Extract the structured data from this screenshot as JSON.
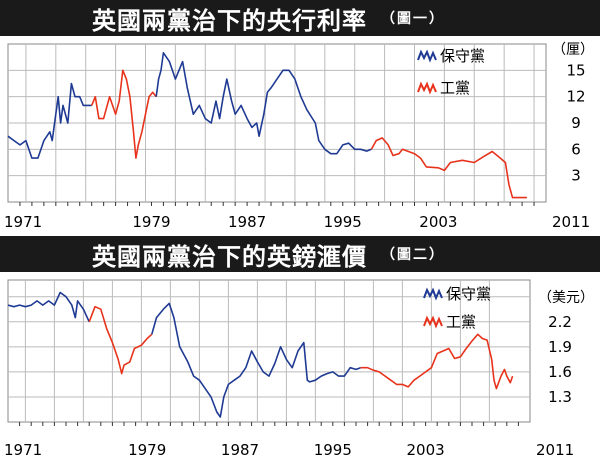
{
  "colors": {
    "conservative": "#1f3a93",
    "labour": "#e8331c",
    "grid": "#bbbbbb",
    "title_bg": "#1a1a1a"
  },
  "chart_data": [
    {
      "type": "line",
      "title": "英國兩黨治下的央行利率",
      "tag": "（圖一）",
      "ylabel": "（厘）",
      "xlim": [
        1967,
        2012
      ],
      "ylim": [
        0,
        18
      ],
      "x_ticks": [
        "1971",
        "1979",
        "1987",
        "1995",
        "2003",
        "2011"
      ],
      "y_ticks": [
        "15",
        "12",
        "9",
        "6",
        "3"
      ],
      "legend_placement": "top-right",
      "series": [
        {
          "name": "保守黨",
          "color_key": "conservative",
          "points": [
            [
              1967,
              7.5
            ],
            [
              1967.5,
              7
            ],
            [
              1968,
              6.5
            ],
            [
              1968.5,
              7
            ],
            [
              1969,
              5
            ],
            [
              1969.5,
              5
            ],
            [
              1970,
              7
            ],
            [
              1970.5,
              8
            ],
            [
              1970.7,
              7
            ],
            [
              1971,
              10
            ],
            [
              1971.2,
              12
            ],
            [
              1971.4,
              9
            ],
            [
              1971.6,
              11
            ],
            [
              1972,
              9
            ],
            [
              1972.3,
              13.5
            ],
            [
              1972.6,
              12
            ],
            [
              1973,
              12
            ],
            [
              1973.3,
              11
            ],
            [
              1974,
              11
            ]
          ]
        },
        {
          "name": "工黨",
          "color_key": "labour",
          "points": [
            [
              1974,
              11
            ],
            [
              1974.3,
              12
            ],
            [
              1974.6,
              9.5
            ],
            [
              1975,
              9.5
            ],
            [
              1975.5,
              12
            ],
            [
              1976,
              10
            ],
            [
              1976.3,
              11.5
            ],
            [
              1976.6,
              15
            ],
            [
              1976.9,
              14
            ],
            [
              1977.2,
              12
            ],
            [
              1977.5,
              8
            ],
            [
              1977.7,
              5
            ],
            [
              1977.9,
              6.5
            ],
            [
              1978.2,
              8
            ],
            [
              1978.5,
              10
            ],
            [
              1978.8,
              12
            ],
            [
              1979.1,
              12.5
            ],
            [
              1979.4,
              12
            ]
          ]
        },
        {
          "name": "保守黨",
          "color_key": "conservative",
          "points": [
            [
              1979.4,
              12
            ],
            [
              1979.6,
              14
            ],
            [
              1979.8,
              15
            ],
            [
              1980,
              17
            ],
            [
              1980.5,
              16
            ],
            [
              1981,
              14
            ],
            [
              1981.3,
              15
            ],
            [
              1981.6,
              16
            ],
            [
              1982,
              13
            ],
            [
              1982.5,
              10
            ],
            [
              1983,
              11
            ],
            [
              1983.5,
              9.5
            ],
            [
              1984,
              9
            ],
            [
              1984.4,
              11.5
            ],
            [
              1984.7,
              9.5
            ],
            [
              1985,
              12
            ],
            [
              1985.3,
              14
            ],
            [
              1985.7,
              11.5
            ],
            [
              1986,
              10
            ],
            [
              1986.5,
              11
            ],
            [
              1987,
              9.5
            ],
            [
              1987.4,
              8.5
            ],
            [
              1987.8,
              9
            ],
            [
              1988,
              7.5
            ],
            [
              1988.4,
              10
            ],
            [
              1988.7,
              12.5
            ],
            [
              1989,
              13
            ],
            [
              1989.5,
              14
            ],
            [
              1990,
              15
            ],
            [
              1990.5,
              15
            ],
            [
              1991,
              14
            ],
            [
              1991.5,
              12
            ],
            [
              1992,
              10.5
            ],
            [
              1992.7,
              9
            ],
            [
              1993,
              7
            ],
            [
              1993.5,
              6
            ],
            [
              1994,
              5.5
            ],
            [
              1994.5,
              5.5
            ],
            [
              1995,
              6.5
            ],
            [
              1995.5,
              6.7
            ],
            [
              1996,
              6
            ],
            [
              1996.5,
              6
            ],
            [
              1997,
              5.8
            ],
            [
              1997.4,
              6
            ]
          ]
        },
        {
          "name": "工黨",
          "color_key": "labour",
          "points": [
            [
              1997.4,
              6
            ],
            [
              1997.8,
              7
            ],
            [
              1998.3,
              7.3
            ],
            [
              1998.8,
              6.5
            ],
            [
              1999.2,
              5.3
            ],
            [
              1999.7,
              5.5
            ],
            [
              2000,
              6
            ],
            [
              2001,
              5.5
            ],
            [
              2001.5,
              5
            ],
            [
              2002,
              4
            ],
            [
              2003,
              3.9
            ],
            [
              2003.5,
              3.6
            ],
            [
              2004,
              4.5
            ],
            [
              2005,
              4.75
            ],
            [
              2006,
              4.5
            ],
            [
              2006.8,
              5.2
            ],
            [
              2007.5,
              5.75
            ],
            [
              2008,
              5.2
            ],
            [
              2008.6,
              4.5
            ],
            [
              2008.9,
              2
            ],
            [
              2009.2,
              0.5
            ],
            [
              2010,
              0.5
            ],
            [
              2010.4,
              0.5
            ]
          ]
        }
      ]
    },
    {
      "type": "line",
      "title": "英國兩黨治下的英鎊滙價",
      "tag": "（圖二）",
      "ylabel": "（美元）",
      "xlim": [
        1967,
        2012
      ],
      "ylim": [
        1.0,
        2.7
      ],
      "x_ticks": [
        "1971",
        "1979",
        "1987",
        "1995",
        "2003",
        "2011"
      ],
      "y_ticks": [
        "2.2",
        "1.9",
        "1.6",
        "1.3"
      ],
      "legend_placement": "top-right",
      "series": [
        {
          "name": "保守黨",
          "color_key": "conservative",
          "points": [
            [
              1967,
              2.4
            ],
            [
              1967.5,
              2.38
            ],
            [
              1968,
              2.4
            ],
            [
              1968.5,
              2.38
            ],
            [
              1969,
              2.4
            ],
            [
              1969.5,
              2.45
            ],
            [
              1970,
              2.4
            ],
            [
              1970.5,
              2.45
            ],
            [
              1971,
              2.4
            ],
            [
              1971.5,
              2.55
            ],
            [
              1972,
              2.5
            ],
            [
              1972.5,
              2.4
            ],
            [
              1972.8,
              2.25
            ],
            [
              1973,
              2.45
            ],
            [
              1973.5,
              2.35
            ],
            [
              1974,
              2.2
            ]
          ]
        },
        {
          "name": "工黨",
          "color_key": "labour",
          "points": [
            [
              1974,
              2.2
            ],
            [
              1974.5,
              2.38
            ],
            [
              1975,
              2.35
            ],
            [
              1975.5,
              2.12
            ],
            [
              1976,
              1.95
            ],
            [
              1976.5,
              1.75
            ],
            [
              1976.8,
              1.58
            ],
            [
              1977,
              1.68
            ],
            [
              1977.5,
              1.72
            ],
            [
              1977.9,
              1.88
            ],
            [
              1978.5,
              1.92
            ],
            [
              1979,
              2.0
            ],
            [
              1979.4,
              2.05
            ]
          ]
        },
        {
          "name": "保守黨",
          "color_key": "conservative",
          "points": [
            [
              1979.4,
              2.05
            ],
            [
              1979.8,
              2.25
            ],
            [
              1980.4,
              2.35
            ],
            [
              1980.9,
              2.42
            ],
            [
              1981.3,
              2.25
            ],
            [
              1981.8,
              1.9
            ],
            [
              1982.5,
              1.72
            ],
            [
              1983,
              1.55
            ],
            [
              1983.5,
              1.5
            ],
            [
              1984,
              1.4
            ],
            [
              1984.5,
              1.3
            ],
            [
              1985,
              1.12
            ],
            [
              1985.3,
              1.06
            ],
            [
              1985.6,
              1.3
            ],
            [
              1986,
              1.45
            ],
            [
              1986.5,
              1.5
            ],
            [
              1987,
              1.55
            ],
            [
              1987.5,
              1.65
            ],
            [
              1988,
              1.85
            ],
            [
              1988.5,
              1.72
            ],
            [
              1989,
              1.6
            ],
            [
              1989.5,
              1.55
            ],
            [
              1990,
              1.7
            ],
            [
              1990.5,
              1.9
            ],
            [
              1991,
              1.75
            ],
            [
              1991.5,
              1.65
            ],
            [
              1992,
              1.85
            ],
            [
              1992.5,
              1.95
            ],
            [
              1992.8,
              1.5
            ],
            [
              1993,
              1.48
            ],
            [
              1993.5,
              1.5
            ],
            [
              1994,
              1.55
            ],
            [
              1994.5,
              1.58
            ],
            [
              1995,
              1.6
            ],
            [
              1995.5,
              1.55
            ],
            [
              1996,
              1.55
            ],
            [
              1996.5,
              1.65
            ],
            [
              1997,
              1.63
            ],
            [
              1997.4,
              1.65
            ]
          ]
        },
        {
          "name": "工黨",
          "color_key": "labour",
          "points": [
            [
              1997.4,
              1.65
            ],
            [
              1998,
              1.65
            ],
            [
              1998.5,
              1.62
            ],
            [
              1999,
              1.6
            ],
            [
              2000,
              1.5
            ],
            [
              2000.5,
              1.45
            ],
            [
              2001,
              1.45
            ],
            [
              2001.5,
              1.42
            ],
            [
              2002,
              1.5
            ],
            [
              2002.5,
              1.55
            ],
            [
              2003,
              1.6
            ],
            [
              2003.5,
              1.65
            ],
            [
              2004,
              1.82
            ],
            [
              2004.5,
              1.85
            ],
            [
              2005,
              1.88
            ],
            [
              2005.5,
              1.76
            ],
            [
              2006,
              1.78
            ],
            [
              2006.5,
              1.88
            ],
            [
              2007,
              1.97
            ],
            [
              2007.5,
              2.05
            ],
            [
              2007.9,
              2.0
            ],
            [
              2008.3,
              1.98
            ],
            [
              2008.7,
              1.75
            ],
            [
              2008.9,
              1.5
            ],
            [
              2009.1,
              1.4
            ],
            [
              2009.5,
              1.55
            ],
            [
              2009.8,
              1.63
            ],
            [
              2010,
              1.55
            ],
            [
              2010.3,
              1.47
            ],
            [
              2010.5,
              1.55
            ]
          ]
        }
      ]
    }
  ]
}
